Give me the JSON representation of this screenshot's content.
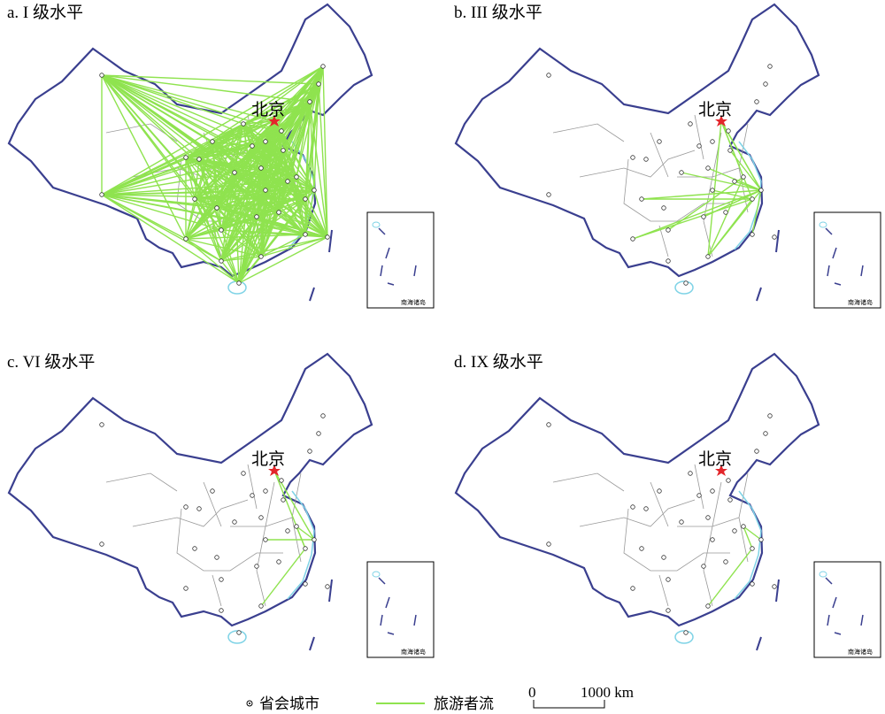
{
  "panels": [
    {
      "title": "a. I 级水平",
      "capital": "北京",
      "inset_label": "南海诸岛"
    },
    {
      "title": "b. III 级水平",
      "capital": "北京",
      "inset_label": "南海诸岛"
    },
    {
      "title": "c. VI 级水平",
      "capital": "北京",
      "inset_label": "南海诸岛"
    },
    {
      "title": "d. IX 级水平",
      "capital": "北京",
      "inset_label": "南海诸岛"
    }
  ],
  "legend": {
    "items": [
      "省会城市",
      "旅游者流"
    ]
  },
  "scale_bar": {
    "labels": [
      "0",
      "1000 km"
    ]
  }
}
